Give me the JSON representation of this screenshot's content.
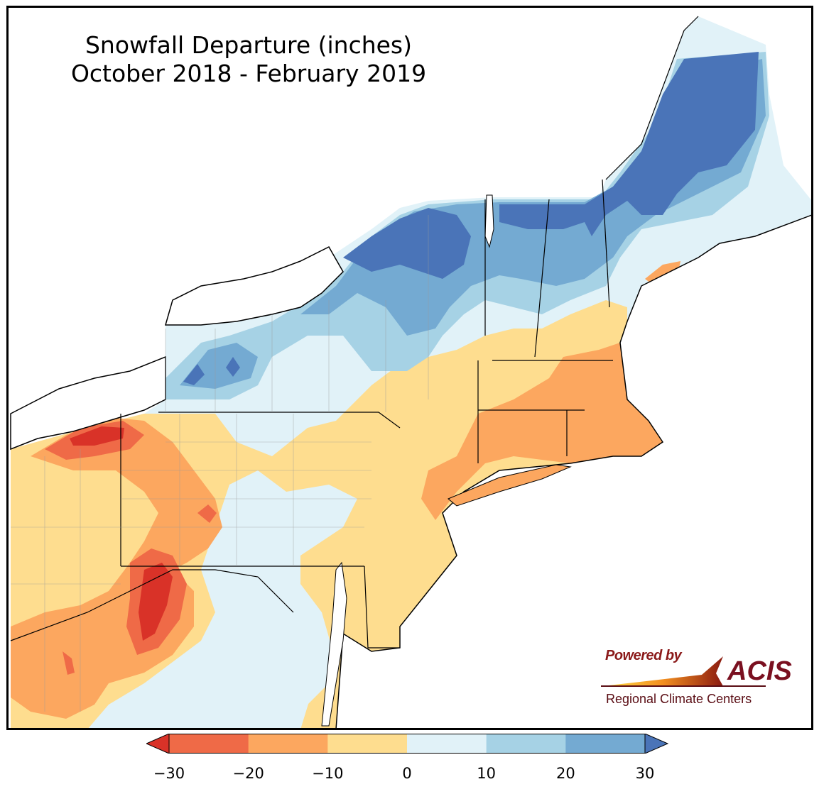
{
  "title": {
    "line1": "Snowfall Departure (inches)",
    "line2": "October 2018 - February 2019"
  },
  "logo": {
    "powered_by": "Powered by",
    "brand": "ACIS",
    "subtitle": "Regional Climate Centers"
  },
  "legend": {
    "ticks": [
      "−30",
      "−20",
      "−10",
      "0",
      "10",
      "20",
      "30"
    ],
    "bins": [
      {
        "range": "-30 to -20",
        "color": "#ef6a47"
      },
      {
        "range": "-20 to -10",
        "color": "#fca75f"
      },
      {
        "range": "-10 to 0",
        "color": "#fedd8f"
      },
      {
        "range": "0 to 10",
        "color": "#e1f2f8"
      },
      {
        "range": "10 to 20",
        "color": "#a6d2e5"
      },
      {
        "range": "20 to 30",
        "color": "#74aad2"
      }
    ],
    "under_color": "#d93228",
    "over_color": "#4a74b8"
  },
  "colors": {
    "deep_red": "#d93228",
    "red": "#ef6a47",
    "orange": "#fca75f",
    "light_orange": "#fedd8f",
    "light_blue": "#e1f2f8",
    "mid_blue": "#a6d2e5",
    "blue": "#74aad2",
    "deep_blue": "#4a74b8",
    "water": "#ffffff"
  }
}
